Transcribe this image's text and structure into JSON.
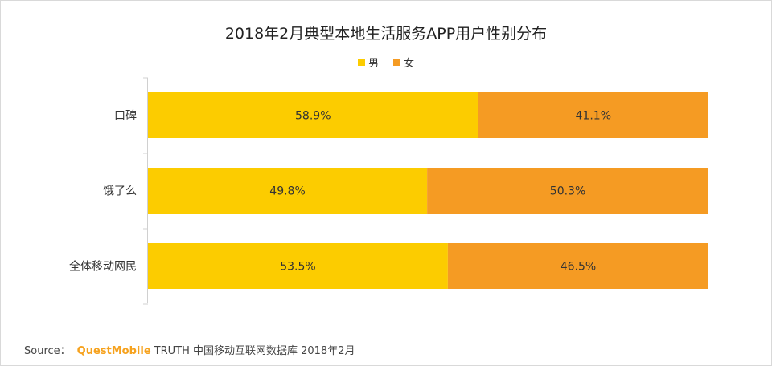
{
  "source": {
    "label": "Source：",
    "brand": "QuestMobile",
    "text": "TRUTH 中国移动互联网数据库 2018年2月"
  },
  "colors": {
    "male": "#fccc00",
    "female": "#f59b23"
  },
  "chart_data": {
    "type": "bar",
    "stacked": true,
    "orientation": "horizontal",
    "title": "2018年2月典型本地生活服务APP用户性别分布",
    "legend": [
      "男",
      "女"
    ],
    "legend_position": "top",
    "categories": [
      "口碑",
      "饿了么",
      "全体移动网民"
    ],
    "series": [
      {
        "name": "男",
        "values": [
          58.9,
          49.8,
          53.5
        ],
        "labels": [
          "58.9%",
          "49.8%",
          "53.5%"
        ]
      },
      {
        "name": "女",
        "values": [
          41.1,
          50.3,
          46.5
        ],
        "labels": [
          "41.1%",
          "50.3%",
          "46.5%"
        ]
      }
    ],
    "xlim": [
      0,
      100
    ],
    "xlabel": "",
    "ylabel": ""
  }
}
